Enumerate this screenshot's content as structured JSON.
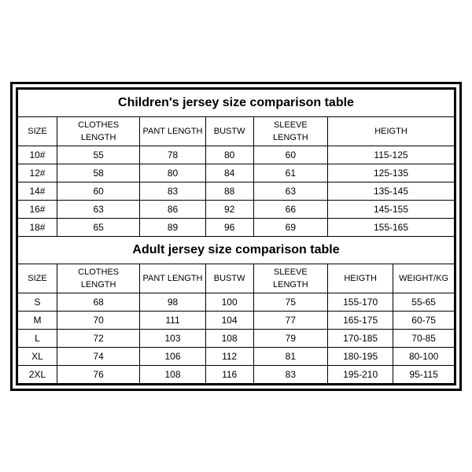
{
  "children": {
    "title": "Children's jersey size comparison table",
    "headers": [
      "SIZE",
      "CLOTHES LENGTH",
      "PANT LENGTH",
      "BUSTW",
      "SLEEVE LENGTH",
      "HEIGTH"
    ],
    "rows": [
      [
        "10#",
        "55",
        "78",
        "80",
        "60",
        "115-125"
      ],
      [
        "12#",
        "58",
        "80",
        "84",
        "61",
        "125-135"
      ],
      [
        "14#",
        "60",
        "83",
        "88",
        "63",
        "135-145"
      ],
      [
        "16#",
        "63",
        "86",
        "92",
        "66",
        "145-155"
      ],
      [
        "18#",
        "65",
        "89",
        "96",
        "69",
        "155-165"
      ]
    ]
  },
  "adult": {
    "title": "Adult jersey size comparison table",
    "headers": [
      "SIZE",
      "CLOTHES LENGTH",
      "PANT LENGTH",
      "BUSTW",
      "SLEEVE LENGTH",
      "HEIGTH",
      "WEIGHT/KG"
    ],
    "rows": [
      [
        "S",
        "68",
        "98",
        "100",
        "75",
        "155-170",
        "55-65"
      ],
      [
        "M",
        "70",
        "111",
        "104",
        "77",
        "165-175",
        "60-75"
      ],
      [
        "L",
        "72",
        "103",
        "108",
        "79",
        "170-185",
        "70-85"
      ],
      [
        "XL",
        "74",
        "106",
        "112",
        "81",
        "180-195",
        "80-100"
      ],
      [
        "2XL",
        "76",
        "108",
        "116",
        "83",
        "195-210",
        "95-115"
      ]
    ]
  }
}
